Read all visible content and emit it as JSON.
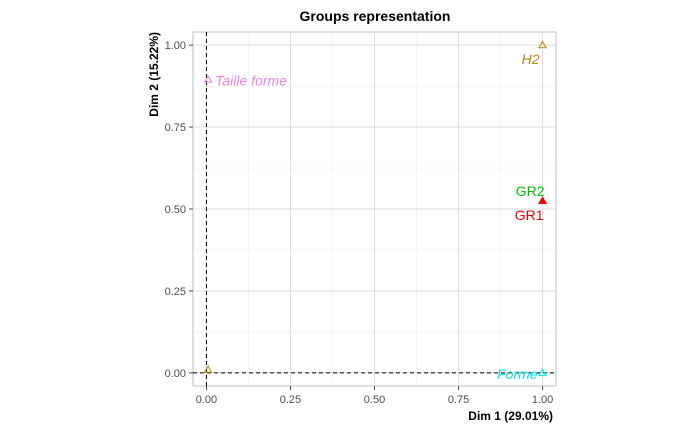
{
  "chart_data": {
    "type": "scatter",
    "title": "Groups representation",
    "xlabel": "Dim 1 (29.01%)",
    "ylabel": "Dim 2 (15.22%)",
    "xlim": [
      -0.04,
      1.04
    ],
    "ylim": [
      -0.04,
      1.04
    ],
    "x_ticks": [
      0,
      0.25,
      0.5,
      0.75,
      1
    ],
    "x_tick_labels": [
      "0.00",
      "0.25",
      "0.50",
      "0.75",
      "1.00"
    ],
    "y_ticks": [
      0,
      0.25,
      0.5,
      0.75,
      1
    ],
    "y_tick_labels": [
      "0.00",
      "0.25",
      "0.50",
      "0.75",
      "1.00"
    ],
    "grid": true,
    "reference_lines": {
      "x": 0,
      "y": 0,
      "style": "dashed"
    },
    "points": [
      {
        "label": "H2",
        "x": 1.0,
        "y": 1.0,
        "marker": "open-triangle",
        "color": "#B8860B",
        "italic": true,
        "label_pos": "below-left"
      },
      {
        "label": "Taille forme",
        "x": 0.005,
        "y": 0.895,
        "marker": "open-triangle",
        "color": "#EE82EE",
        "italic": true,
        "label_pos": "right"
      },
      {
        "label": "GR2",
        "x": 1.0,
        "y": 0.525,
        "marker": "filled-triangle",
        "color": "#00C000",
        "italic": false,
        "label_pos": "above-left"
      },
      {
        "label": "GR1",
        "x": 1.0,
        "y": 0.525,
        "marker": "filled-triangle",
        "color": "#EE0000",
        "italic": false,
        "label_pos": "below-left"
      },
      {
        "label": "Forme",
        "x": 1.0,
        "y": 0.0,
        "marker": "open-triangle",
        "color": "#00E5EE",
        "italic": true,
        "label_pos": "left"
      },
      {
        "label": "",
        "x": 0.005,
        "y": 0.01,
        "marker": "open-triangle",
        "color": "#B8860B",
        "italic": false,
        "label_pos": "none"
      }
    ]
  }
}
